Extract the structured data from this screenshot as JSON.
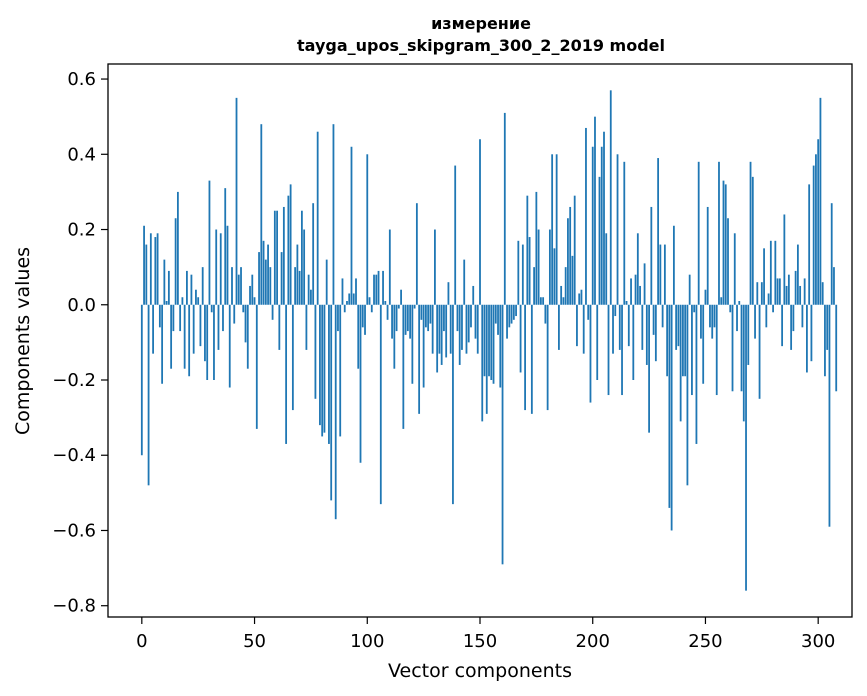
{
  "chart_data": {
    "type": "bar",
    "title_line1": "измерение",
    "title_line2": "tayga_upos_skipgram_300_2_2019 model",
    "xlabel": "Vector components",
    "ylabel": "Components values",
    "xlim": [
      -15,
      315
    ],
    "ylim": [
      -0.83,
      0.64
    ],
    "x_ticks": [
      0,
      50,
      100,
      150,
      200,
      250,
      300
    ],
    "x_tick_labels": [
      "0",
      "50",
      "100",
      "150",
      "200",
      "250",
      "300"
    ],
    "y_ticks": [
      -0.8,
      -0.6,
      -0.4,
      -0.2,
      0.0,
      0.2,
      0.4,
      0.6
    ],
    "y_tick_labels": [
      "−0.8",
      "−0.6",
      "−0.4",
      "−0.2",
      "0.0",
      "0.2",
      "0.4",
      "0.6"
    ],
    "bar_color": "#1f77b4",
    "grid": false,
    "values": [
      -0.4,
      0.21,
      0.16,
      -0.48,
      0.19,
      -0.13,
      0.18,
      0.19,
      -0.06,
      -0.21,
      0.12,
      0.01,
      0.09,
      -0.17,
      -0.07,
      0.23,
      0.3,
      -0.07,
      0.02,
      -0.17,
      0.09,
      -0.19,
      0.08,
      -0.13,
      0.04,
      0.02,
      -0.11,
      0.1,
      -0.15,
      -0.2,
      0.33,
      -0.02,
      -0.2,
      0.2,
      -0.12,
      0.19,
      -0.07,
      0.31,
      0.21,
      -0.22,
      0.1,
      -0.05,
      0.55,
      0.08,
      0.1,
      -0.02,
      -0.1,
      -0.17,
      0.05,
      0.08,
      0.02,
      -0.33,
      0.14,
      0.48,
      0.17,
      0.12,
      0.16,
      0.1,
      -0.04,
      0.25,
      0.25,
      -0.12,
      0.14,
      0.26,
      -0.37,
      0.29,
      0.32,
      -0.28,
      0.1,
      0.16,
      0.09,
      0.25,
      0.2,
      -0.12,
      0.08,
      0.04,
      0.27,
      -0.25,
      0.46,
      -0.32,
      -0.35,
      -0.34,
      0.12,
      -0.37,
      -0.52,
      0.48,
      -0.57,
      -0.07,
      -0.35,
      0.07,
      -0.02,
      0.01,
      0.03,
      0.42,
      0.03,
      0.07,
      -0.17,
      -0.42,
      -0.06,
      -0.08,
      0.4,
      0.02,
      -0.02,
      0.08,
      0.08,
      0.09,
      -0.53,
      0.09,
      0.01,
      -0.04,
      0.2,
      -0.09,
      -0.17,
      -0.07,
      -0.01,
      0.04,
      -0.33,
      -0.08,
      -0.07,
      -0.09,
      -0.21,
      -0.01,
      0.27,
      -0.29,
      -0.04,
      -0.22,
      -0.06,
      -0.07,
      -0.05,
      -0.13,
      0.2,
      -0.18,
      -0.13,
      -0.16,
      -0.07,
      -0.14,
      0.06,
      -0.13,
      -0.53,
      0.37,
      -0.07,
      -0.16,
      -0.12,
      0.12,
      -0.13,
      -0.1,
      -0.06,
      0.05,
      -0.09,
      -0.13,
      0.44,
      -0.31,
      -0.19,
      -0.29,
      -0.19,
      -0.2,
      -0.21,
      -0.05,
      -0.08,
      -0.22,
      -0.69,
      0.51,
      -0.09,
      -0.06,
      -0.05,
      -0.04,
      -0.03,
      0.17,
      -0.18,
      0.16,
      -0.28,
      0.29,
      0.18,
      -0.29,
      0.1,
      0.3,
      0.2,
      0.02,
      0.02,
      -0.05,
      -0.28,
      0.2,
      0.4,
      0.15,
      0.4,
      -0.12,
      0.05,
      0.02,
      0.1,
      0.23,
      0.26,
      0.13,
      0.29,
      -0.11,
      0.03,
      0.04,
      -0.13,
      0.47,
      -0.04,
      -0.26,
      0.42,
      0.5,
      -0.2,
      0.34,
      0.42,
      0.46,
      0.19,
      -0.24,
      0.57,
      -0.13,
      -0.03,
      0.4,
      -0.12,
      -0.24,
      0.38,
      0.01,
      -0.11,
      0.07,
      -0.2,
      0.08,
      0.19,
      0.05,
      -0.12,
      0.11,
      -0.16,
      -0.34,
      0.26,
      -0.08,
      -0.15,
      0.39,
      0.16,
      -0.06,
      0.16,
      -0.19,
      -0.54,
      -0.6,
      0.21,
      -0.12,
      -0.11,
      -0.31,
      -0.19,
      -0.19,
      -0.48,
      0.08,
      -0.24,
      -0.02,
      -0.37,
      0.38,
      -0.09,
      -0.21,
      0.04,
      0.26,
      -0.06,
      -0.09,
      -0.06,
      -0.24,
      0.38,
      0.02,
      0.33,
      0.32,
      0.23,
      -0.02,
      -0.23,
      0.19,
      -0.07,
      0.01,
      -0.23,
      -0.31,
      -0.76,
      -0.16,
      0.38,
      0.34,
      -0.09,
      0.06,
      -0.25,
      0.06,
      0.15,
      -0.06,
      0.03,
      0.17,
      -0.02,
      0.17,
      0.07,
      0.07,
      -0.11,
      0.24,
      0.05,
      0.08,
      -0.12,
      -0.07,
      0.09,
      0.16,
      0.05,
      -0.06,
      0.07,
      -0.18,
      0.32,
      -0.15,
      0.37,
      0.4,
      0.44,
      0.55,
      0.06,
      -0.19,
      -0.12,
      -0.59,
      0.27,
      0.1,
      -0.23
    ]
  }
}
